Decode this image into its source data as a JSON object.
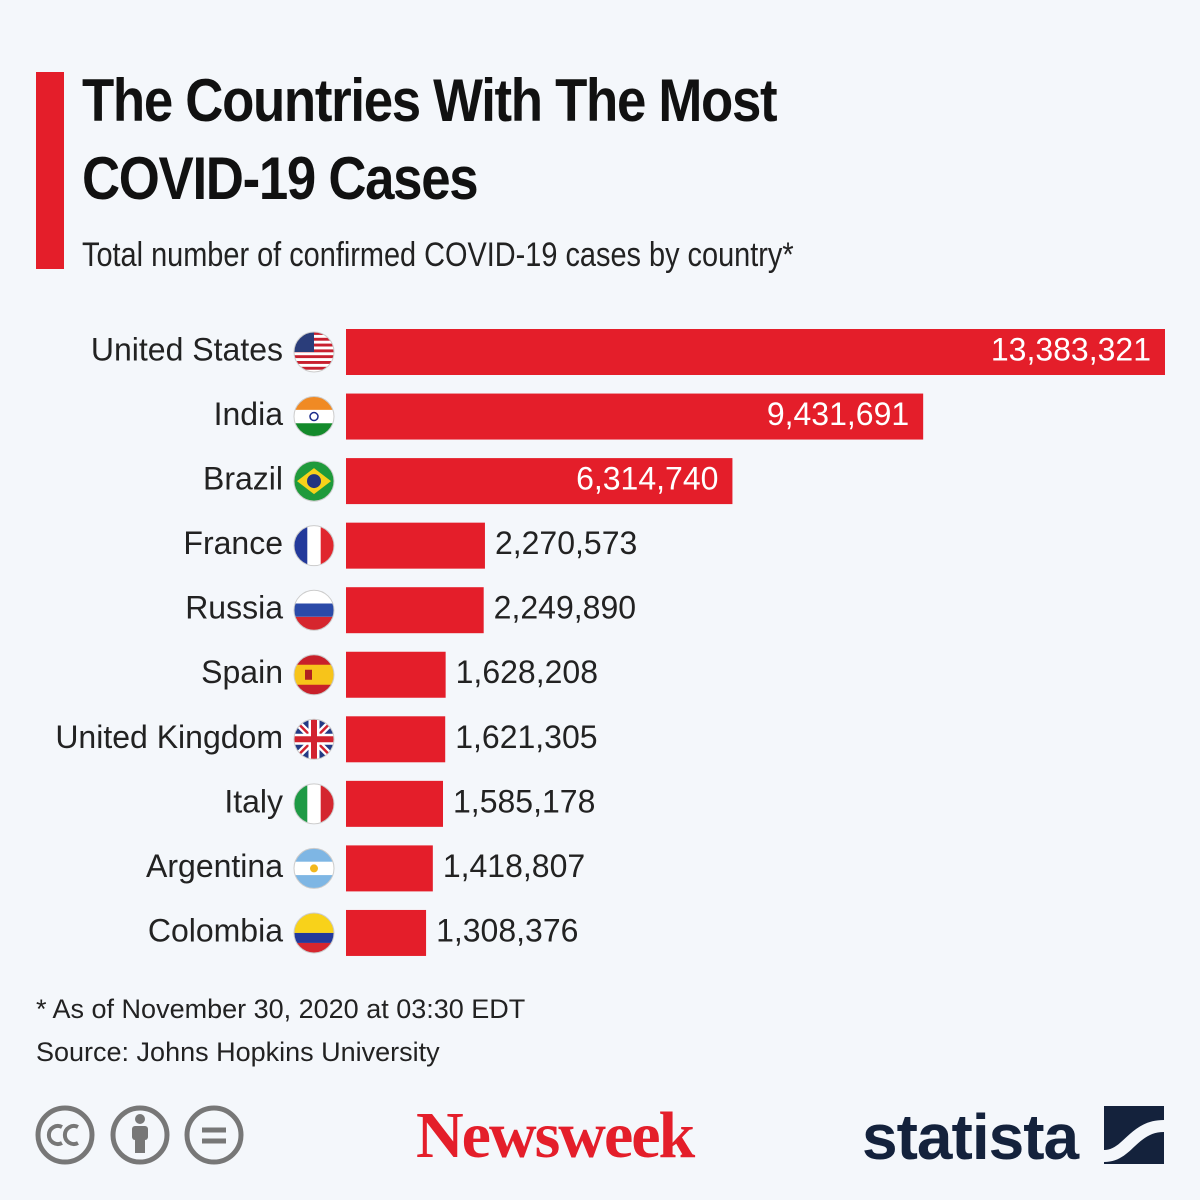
{
  "chart_data": {
    "type": "hbar",
    "title": "The Countries With The Most COVID-19 Cases",
    "subtitle": "Total number of confirmed COVID-19 cases by country*",
    "categories": [
      "United States",
      "India",
      "Brazil",
      "France",
      "Russia",
      "Spain",
      "United Kingdom",
      "Italy",
      "Argentina",
      "Colombia"
    ],
    "values": [
      13383321,
      9431691,
      6314740,
      2270573,
      2249890,
      1628208,
      1621305,
      1585178,
      1418807,
      1308376
    ],
    "value_labels": [
      "13,383,321",
      "9,431,691",
      "6,314,740",
      "2,270,573",
      "2,249,890",
      "1,628,208",
      "1,621,305",
      "1,585,178",
      "1,418,807",
      "1,308,376"
    ],
    "color": "#e41e2a",
    "footnote": "* As of November 30, 2020 at 03:30 EDT",
    "source": "Source: Johns Hopkins University",
    "brands": [
      "Newsweek",
      "statista"
    ]
  }
}
